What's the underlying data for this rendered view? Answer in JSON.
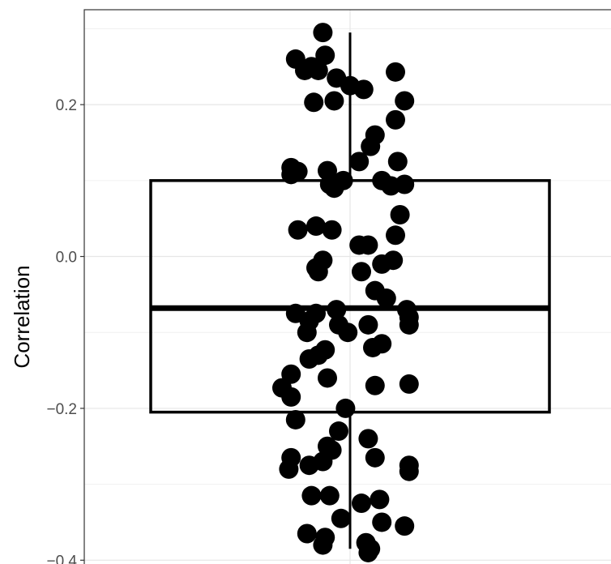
{
  "chart_data": {
    "type": "box",
    "title": "",
    "xlabel": "",
    "ylabel": "Correlation",
    "ylim": [
      -0.405,
      0.325
    ],
    "y_ticks": [
      {
        "value": -0.4,
        "label": "−0.4"
      },
      {
        "value": -0.2,
        "label": "−0.2"
      },
      {
        "value": 0.0,
        "label": "0.0"
      },
      {
        "value": 0.2,
        "label": "0.2"
      }
    ],
    "grid": true,
    "legend": "none",
    "box": {
      "q1": -0.205,
      "median": -0.068,
      "q3": 0.1,
      "whisker_low": -0.385,
      "whisker_high": 0.295
    },
    "points": [
      {
        "x": -0.12,
        "y": 0.295
      },
      {
        "x": -0.24,
        "y": 0.26
      },
      {
        "x": -0.11,
        "y": 0.265
      },
      {
        "x": -0.17,
        "y": 0.25
      },
      {
        "x": -0.2,
        "y": 0.245
      },
      {
        "x": -0.14,
        "y": 0.245
      },
      {
        "x": -0.06,
        "y": 0.235
      },
      {
        "x": 0.0,
        "y": 0.225
      },
      {
        "x": 0.06,
        "y": 0.22
      },
      {
        "x": 0.2,
        "y": 0.243
      },
      {
        "x": -0.16,
        "y": 0.203
      },
      {
        "x": -0.07,
        "y": 0.205
      },
      {
        "x": 0.24,
        "y": 0.205
      },
      {
        "x": 0.2,
        "y": 0.18
      },
      {
        "x": 0.11,
        "y": 0.16
      },
      {
        "x": 0.09,
        "y": 0.145
      },
      {
        "x": 0.04,
        "y": 0.125
      },
      {
        "x": 0.21,
        "y": 0.125
      },
      {
        "x": -0.26,
        "y": 0.117
      },
      {
        "x": -0.23,
        "y": 0.112
      },
      {
        "x": -0.26,
        "y": 0.108
      },
      {
        "x": -0.1,
        "y": 0.113
      },
      {
        "x": -0.03,
        "y": 0.1
      },
      {
        "x": -0.09,
        "y": 0.095
      },
      {
        "x": -0.07,
        "y": 0.09
      },
      {
        "x": 0.14,
        "y": 0.1
      },
      {
        "x": 0.18,
        "y": 0.093
      },
      {
        "x": 0.24,
        "y": 0.095
      },
      {
        "x": 0.22,
        "y": 0.055
      },
      {
        "x": -0.23,
        "y": 0.035
      },
      {
        "x": -0.15,
        "y": 0.04
      },
      {
        "x": -0.08,
        "y": 0.035
      },
      {
        "x": 0.2,
        "y": 0.028
      },
      {
        "x": 0.04,
        "y": 0.015
      },
      {
        "x": 0.08,
        "y": 0.015
      },
      {
        "x": -0.12,
        "y": -0.005
      },
      {
        "x": -0.15,
        "y": -0.015
      },
      {
        "x": -0.14,
        "y": -0.02
      },
      {
        "x": 0.05,
        "y": -0.02
      },
      {
        "x": 0.14,
        "y": -0.01
      },
      {
        "x": 0.19,
        "y": -0.005
      },
      {
        "x": 0.11,
        "y": -0.045
      },
      {
        "x": 0.16,
        "y": -0.055
      },
      {
        "x": -0.24,
        "y": -0.075
      },
      {
        "x": -0.15,
        "y": -0.075
      },
      {
        "x": -0.06,
        "y": -0.07
      },
      {
        "x": -0.18,
        "y": -0.085
      },
      {
        "x": -0.19,
        "y": -0.1
      },
      {
        "x": -0.05,
        "y": -0.09
      },
      {
        "x": -0.01,
        "y": -0.1
      },
      {
        "x": 0.08,
        "y": -0.09
      },
      {
        "x": 0.25,
        "y": -0.07
      },
      {
        "x": 0.26,
        "y": -0.08
      },
      {
        "x": 0.26,
        "y": -0.09
      },
      {
        "x": -0.11,
        "y": -0.123
      },
      {
        "x": -0.14,
        "y": -0.13
      },
      {
        "x": -0.18,
        "y": -0.135
      },
      {
        "x": 0.14,
        "y": -0.115
      },
      {
        "x": 0.1,
        "y": -0.12
      },
      {
        "x": -0.26,
        "y": -0.155
      },
      {
        "x": -0.1,
        "y": -0.16
      },
      {
        "x": -0.3,
        "y": -0.173
      },
      {
        "x": -0.26,
        "y": -0.185
      },
      {
        "x": 0.11,
        "y": -0.17
      },
      {
        "x": 0.26,
        "y": -0.168
      },
      {
        "x": -0.24,
        "y": -0.215
      },
      {
        "x": -0.02,
        "y": -0.2
      },
      {
        "x": -0.05,
        "y": -0.23
      },
      {
        "x": 0.08,
        "y": -0.24
      },
      {
        "x": -0.1,
        "y": -0.25
      },
      {
        "x": -0.08,
        "y": -0.255
      },
      {
        "x": -0.26,
        "y": -0.265
      },
      {
        "x": -0.12,
        "y": -0.27
      },
      {
        "x": -0.18,
        "y": -0.275
      },
      {
        "x": -0.27,
        "y": -0.28
      },
      {
        "x": 0.11,
        "y": -0.265
      },
      {
        "x": 0.26,
        "y": -0.275
      },
      {
        "x": 0.26,
        "y": -0.283
      },
      {
        "x": -0.17,
        "y": -0.315
      },
      {
        "x": -0.09,
        "y": -0.315
      },
      {
        "x": 0.05,
        "y": -0.325
      },
      {
        "x": 0.13,
        "y": -0.32
      },
      {
        "x": -0.04,
        "y": -0.345
      },
      {
        "x": 0.14,
        "y": -0.35
      },
      {
        "x": 0.24,
        "y": -0.355
      },
      {
        "x": -0.19,
        "y": -0.365
      },
      {
        "x": -0.11,
        "y": -0.37
      },
      {
        "x": -0.12,
        "y": -0.38
      },
      {
        "x": 0.07,
        "y": -0.377
      },
      {
        "x": 0.09,
        "y": -0.385
      },
      {
        "x": 0.08,
        "y": -0.39
      }
    ]
  }
}
